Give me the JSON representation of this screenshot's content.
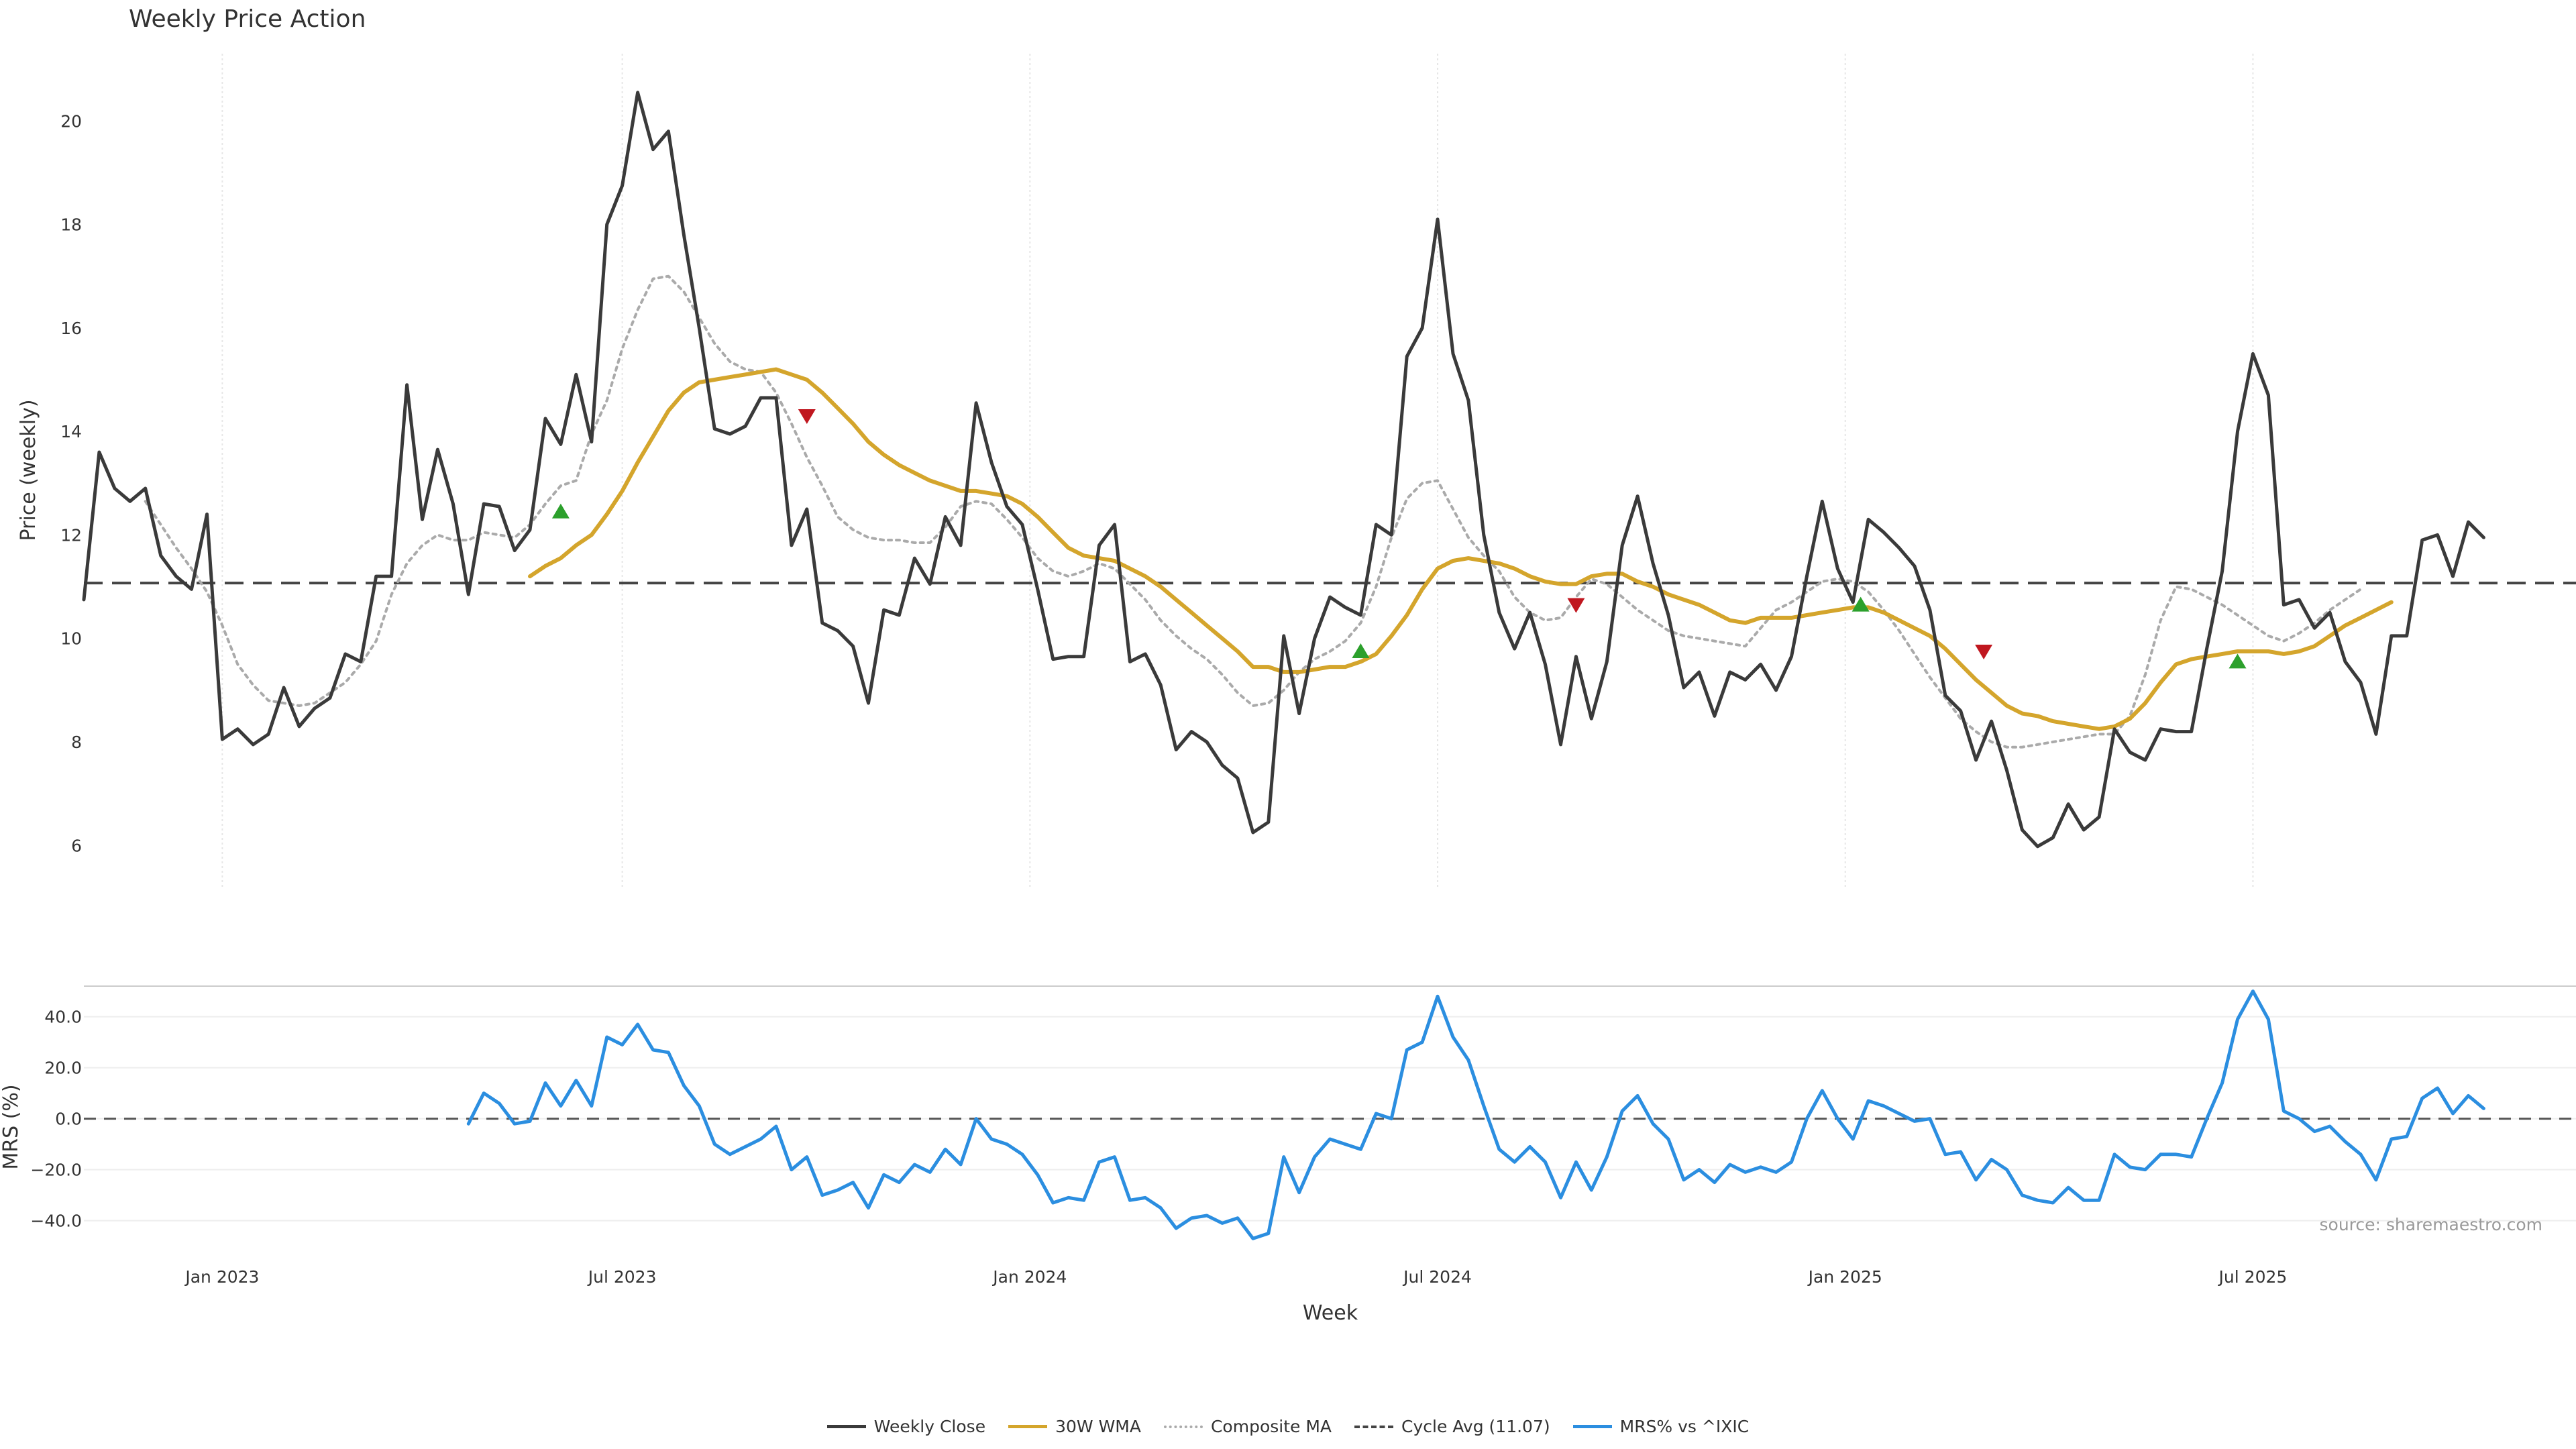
{
  "title": "Weekly Price Action",
  "source_text": "source: sharemaestro.com",
  "legend": [
    {
      "label": "Weekly Close",
      "color": "#3a3a3a",
      "style": "solid"
    },
    {
      "label": "30W WMA",
      "color": "#d4a52c",
      "style": "solid"
    },
    {
      "label": "Composite MA",
      "color": "#aaaaaa",
      "style": "dotted"
    },
    {
      "label": "Cycle Avg (11.07)",
      "color": "#444444",
      "style": "dashed"
    },
    {
      "label": "MRS% vs ^IXIC",
      "color": "#2b8ee0",
      "style": "solid"
    }
  ],
  "chart_data": [
    {
      "type": "line",
      "title": "Weekly Price Action",
      "xlabel": "Week",
      "ylabel": "Price (weekly)",
      "x_tick_labels": [
        "Jan 2023",
        "Jul 2023",
        "Jan 2024",
        "Jul 2024",
        "Jan 2025",
        "Jul 2025"
      ],
      "y_ticks": [
        6,
        8,
        10,
        12,
        14,
        16,
        18,
        20
      ],
      "ylim": [
        5.2,
        21.3
      ],
      "x_range": [
        0,
        162
      ],
      "x_tick_positions": [
        9,
        35,
        61.5,
        88,
        114.5,
        141
      ],
      "cycle_avg": 11.07,
      "series": [
        {
          "name": "Weekly Close",
          "values": [
            10.75,
            13.6,
            12.9,
            12.65,
            12.9,
            11.6,
            11.2,
            10.95,
            12.4,
            8.05,
            8.25,
            7.95,
            8.15,
            9.05,
            8.3,
            8.65,
            8.85,
            9.7,
            9.55,
            11.2,
            11.2,
            14.9,
            12.3,
            13.65,
            12.6,
            10.85,
            12.6,
            12.55,
            11.7,
            12.1,
            14.25,
            13.75,
            15.1,
            13.8,
            18,
            18.75,
            20.55,
            19.45,
            19.8,
            17.8,
            16,
            14.05,
            13.95,
            14.1,
            14.65,
            14.65,
            11.8,
            12.5,
            10.3,
            10.15,
            9.85,
            8.75,
            10.55,
            10.45,
            11.55,
            11.05,
            12.35,
            11.8,
            14.55,
            13.4,
            12.55,
            12.2,
            10.95,
            9.6,
            9.65,
            9.65,
            11.8,
            12.2,
            9.55,
            9.7,
            9.1,
            7.85,
            8.2,
            8,
            7.55,
            7.3,
            6.25,
            6.45,
            10.05,
            8.55,
            10,
            10.8,
            10.6,
            10.45,
            12.2,
            12,
            15.45,
            16,
            18.1,
            15.5,
            14.6,
            12,
            10.5,
            9.8,
            10.5,
            9.5,
            7.95,
            9.65,
            8.45,
            9.55,
            11.8,
            12.75,
            11.45,
            10.45,
            9.05,
            9.35,
            8.5,
            9.35,
            9.2,
            9.5,
            9,
            9.65,
            11.2,
            12.65,
            11.35,
            10.7,
            12.3,
            12.05,
            11.75,
            11.4,
            10.55,
            8.9,
            8.6,
            7.65,
            8.4,
            7.45,
            6.3,
            5.98,
            6.15,
            6.8,
            6.3,
            6.55,
            8.25,
            7.8,
            7.65,
            8.25,
            8.2,
            8.2,
            9.8,
            11.3,
            14,
            15.5,
            14.7,
            10.65,
            10.75,
            10.2,
            10.5,
            9.55,
            9.15,
            8.15,
            10.05,
            10.05,
            11.9,
            12,
            11.2,
            12.25,
            11.95
          ]
        },
        {
          "name": "30W WMA",
          "x_start": 29,
          "values": [
            11.2,
            11.4,
            11.55,
            11.8,
            12,
            12.4,
            12.85,
            13.4,
            13.9,
            14.4,
            14.75,
            14.95,
            15,
            15.05,
            15.1,
            15.15,
            15.2,
            15.1,
            15,
            14.75,
            14.45,
            14.15,
            13.8,
            13.55,
            13.35,
            13.2,
            13.05,
            12.95,
            12.85,
            12.85,
            12.8,
            12.75,
            12.6,
            12.35,
            12.05,
            11.75,
            11.6,
            11.55,
            11.5,
            11.35,
            11.2,
            11,
            10.75,
            10.5,
            10.25,
            10,
            9.75,
            9.45,
            9.45,
            9.35,
            9.35,
            9.4,
            9.45,
            9.45,
            9.55,
            9.7,
            10.05,
            10.45,
            10.95,
            11.35,
            11.5,
            11.55,
            11.5,
            11.45,
            11.35,
            11.2,
            11.1,
            11.05,
            11.05,
            11.2,
            11.25,
            11.25,
            11.1,
            11,
            10.85,
            10.75,
            10.65,
            10.5,
            10.35,
            10.3,
            10.4,
            10.4,
            10.4,
            10.45,
            10.5,
            10.55,
            10.6,
            10.6,
            10.5,
            10.35,
            10.2,
            10.05,
            9.8,
            9.5,
            9.2,
            8.95,
            8.7,
            8.55,
            8.5,
            8.4,
            8.35,
            8.3,
            8.25,
            8.3,
            8.45,
            8.75,
            9.15,
            9.5,
            9.6,
            9.65,
            9.7,
            9.75,
            9.75,
            9.75,
            9.7,
            9.75,
            9.85,
            10.05,
            10.25,
            10.4,
            10.55,
            10.7
          ]
        },
        {
          "name": "Composite MA",
          "x_start": 4,
          "values": [
            12.65,
            12.2,
            11.75,
            11.35,
            10.9,
            10.25,
            9.5,
            9.1,
            8.8,
            8.75,
            8.7,
            8.75,
            8.95,
            9.15,
            9.5,
            9.95,
            10.85,
            11.45,
            11.8,
            12,
            11.9,
            11.9,
            12.05,
            12,
            11.95,
            12.2,
            12.6,
            12.95,
            13.05,
            13.95,
            14.6,
            15.6,
            16.35,
            16.95,
            17,
            16.7,
            16.2,
            15.7,
            15.35,
            15.2,
            15.15,
            14.75,
            14.15,
            13.5,
            12.95,
            12.35,
            12.1,
            11.95,
            11.9,
            11.9,
            11.85,
            11.85,
            12.15,
            12.55,
            12.65,
            12.6,
            12.3,
            11.95,
            11.55,
            11.3,
            11.2,
            11.3,
            11.45,
            11.35,
            11.05,
            10.75,
            10.35,
            10.05,
            9.8,
            9.6,
            9.3,
            8.95,
            8.7,
            8.75,
            9,
            9.35,
            9.6,
            9.75,
            9.95,
            10.3,
            11,
            11.95,
            12.7,
            13,
            13.05,
            12.5,
            11.95,
            11.6,
            11.3,
            10.8,
            10.5,
            10.35,
            10.4,
            10.8,
            11.15,
            11.05,
            10.8,
            10.55,
            10.35,
            10.15,
            10.05,
            10,
            9.95,
            9.9,
            9.85,
            10.2,
            10.55,
            10.7,
            10.9,
            11.1,
            11.15,
            11.1,
            10.9,
            10.55,
            10.15,
            9.7,
            9.25,
            8.85,
            8.45,
            8.2,
            8,
            7.9,
            7.9,
            7.95,
            8,
            8.05,
            8.1,
            8.15,
            8.15,
            8.5,
            9.3,
            10.35,
            11,
            10.95,
            10.8,
            10.65,
            10.45,
            10.25,
            10.05,
            9.95,
            10.1,
            10.3,
            10.55,
            10.75,
            10.95
          ]
        },
        {
          "name": "Cycle Avg (11.07)",
          "values": [
            11.07
          ]
        }
      ],
      "markers": {
        "buy": [
          {
            "x": 31,
            "y": 12.45
          },
          {
            "x": 83,
            "y": 9.75
          },
          {
            "x": 115.5,
            "y": 10.65
          },
          {
            "x": 140,
            "y": 9.55
          }
        ],
        "sell": [
          {
            "x": 47,
            "y": 14.3
          },
          {
            "x": 97,
            "y": 10.65
          },
          {
            "x": 123.5,
            "y": 9.75
          }
        ]
      }
    },
    {
      "type": "line",
      "xlabel": "Week",
      "ylabel": "MRS (%)",
      "y_ticks": [
        -40,
        -20,
        0,
        20,
        40
      ],
      "y_tick_labels": [
        "−40.0",
        "−20.0",
        "0.0",
        "20.0",
        "40.0"
      ],
      "ylim": [
        -48,
        52
      ],
      "x_range": [
        0,
        162
      ],
      "series": [
        {
          "name": "MRS% vs ^IXIC",
          "x_start": 25,
          "values": [
            -2,
            10,
            6,
            -2,
            -1,
            14,
            5,
            15,
            5,
            32,
            29,
            37,
            27,
            26,
            13,
            5,
            -10,
            -14,
            -11,
            -8,
            -3,
            -20,
            -15,
            -30,
            -28,
            -25,
            -35,
            -22,
            -25,
            -18,
            -21,
            -12,
            -18,
            0,
            -8,
            -10,
            -14,
            -22,
            -33,
            -31,
            -32,
            -17,
            -15,
            -32,
            -31,
            -35,
            -43,
            -39,
            -38,
            -41,
            -39,
            -47,
            -45,
            -15,
            -29,
            -15,
            -8,
            -10,
            -12,
            2,
            0,
            27,
            30,
            48,
            32,
            23,
            5,
            -12,
            -17,
            -11,
            -17,
            -31,
            -17,
            -28,
            -15,
            3,
            9,
            -2,
            -8,
            -24,
            -20,
            -25,
            -18,
            -21,
            -19,
            -21,
            -17,
            0,
            11,
            0,
            -8,
            7,
            5,
            2,
            -1,
            0,
            -14,
            -13,
            -24,
            -16,
            -20,
            -30,
            -32,
            -33,
            -27,
            -32,
            -32,
            -14,
            -19,
            -20,
            -14,
            -14,
            -15,
            0,
            14,
            39,
            50,
            39,
            3,
            0,
            -5,
            -3,
            -9,
            -14,
            -24,
            -8,
            -7,
            8,
            12,
            2,
            9,
            4
          ]
        }
      ]
    }
  ]
}
